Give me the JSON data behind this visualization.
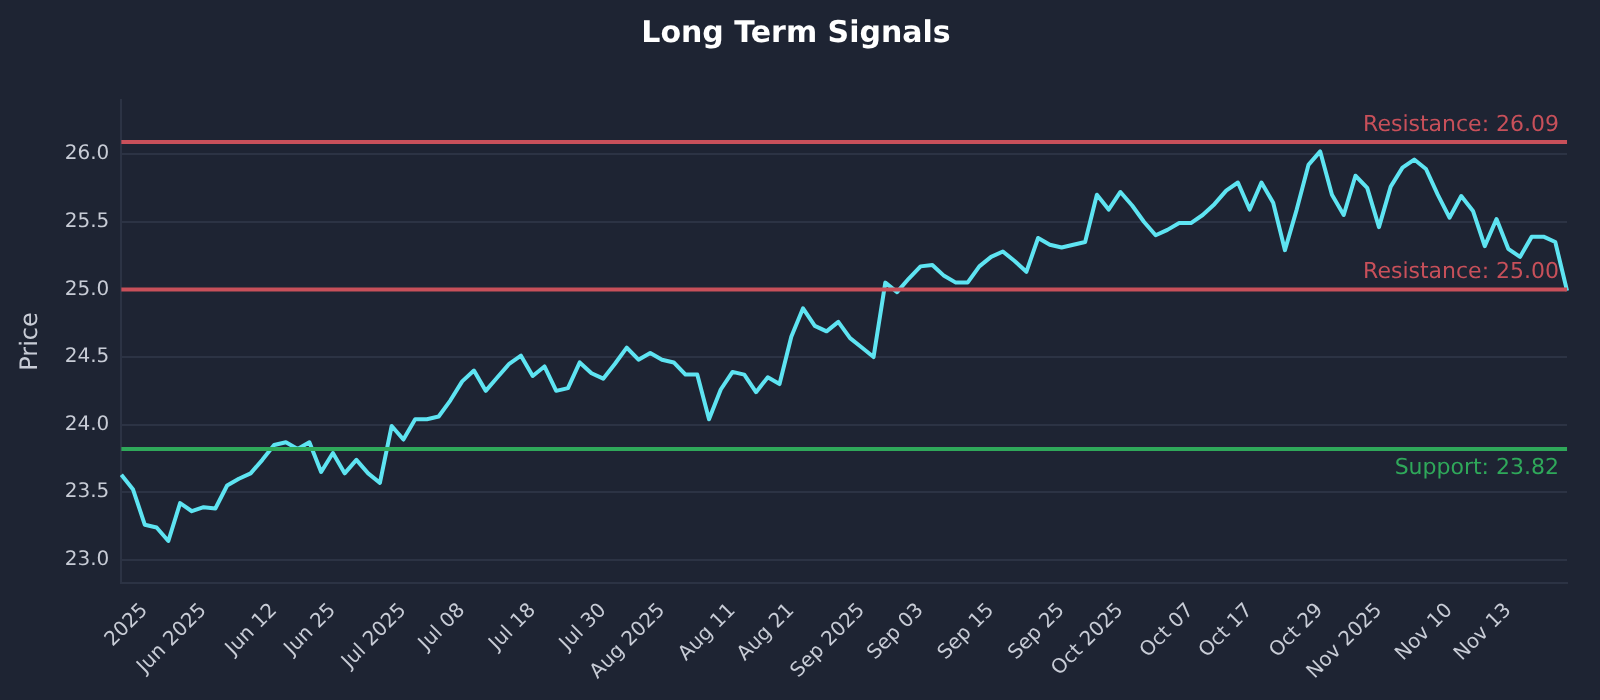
{
  "chart_data": {
    "type": "line",
    "title": "Long Term Signals",
    "ylabel": "Price",
    "categories": [
      null,
      null,
      "2025",
      null,
      null,
      null,
      null,
      "Jun 2025",
      null,
      null,
      null,
      null,
      null,
      "Jun 12",
      null,
      null,
      null,
      null,
      "Jun 25",
      null,
      null,
      null,
      null,
      null,
      "Jul 2025",
      null,
      null,
      null,
      null,
      "Jul 08",
      null,
      null,
      null,
      null,
      null,
      "Jul 18",
      null,
      null,
      null,
      null,
      null,
      "Jul 30",
      null,
      null,
      null,
      null,
      "Aug 2025",
      null,
      null,
      null,
      null,
      null,
      "Aug 11",
      null,
      null,
      null,
      null,
      "Aug 21",
      null,
      null,
      null,
      null,
      null,
      "Sep 2025",
      null,
      null,
      null,
      null,
      "Sep 03",
      null,
      null,
      null,
      null,
      null,
      "Sep 15",
      null,
      null,
      null,
      null,
      null,
      "Sep 25",
      null,
      null,
      null,
      null,
      "Oct 2025",
      null,
      null,
      null,
      null,
      null,
      "Oct 07",
      null,
      null,
      null,
      null,
      "Oct 17",
      null,
      null,
      null,
      null,
      null,
      "Oct 29",
      null,
      null,
      null,
      null,
      "Nov 2025",
      null,
      null,
      null,
      null,
      null,
      "Nov 10",
      null,
      null,
      null,
      null,
      "Nov 13",
      null,
      null,
      null,
      null,
      null
    ],
    "series": [
      {
        "color": "#5ee4f2",
        "values": [
          23.63,
          23.52,
          23.26,
          23.24,
          23.14,
          23.42,
          23.36,
          23.39,
          23.38,
          23.55,
          23.6,
          23.64,
          23.74,
          23.85,
          23.87,
          23.82,
          23.87,
          23.65,
          23.79,
          23.64,
          23.74,
          23.64,
          23.57,
          23.99,
          23.89,
          24.04,
          24.04,
          24.06,
          24.18,
          24.32,
          24.4,
          24.25,
          24.35,
          24.45,
          24.51,
          24.36,
          24.43,
          24.25,
          24.27,
          24.46,
          24.38,
          24.34,
          24.45,
          24.57,
          24.48,
          24.53,
          24.48,
          24.46,
          24.37,
          24.37,
          24.04,
          24.26,
          24.39,
          24.37,
          24.24,
          24.35,
          24.3,
          24.65,
          24.86,
          24.73,
          24.69,
          24.76,
          24.64,
          24.57,
          24.5,
          25.05,
          24.98,
          25.08,
          25.17,
          25.18,
          25.1,
          25.05,
          25.05,
          25.17,
          25.24,
          25.28,
          25.21,
          25.13,
          25.38,
          25.33,
          25.31,
          25.33,
          25.35,
          25.7,
          25.59,
          25.72,
          25.62,
          25.5,
          25.4,
          25.44,
          25.49,
          25.49,
          25.55,
          25.63,
          25.73,
          25.79,
          25.59,
          25.79,
          25.64,
          25.29,
          25.59,
          25.92,
          26.02,
          25.7,
          25.55,
          25.84,
          25.75,
          25.46,
          25.76,
          25.9,
          25.96,
          25.89,
          25.7,
          25.53,
          25.69,
          25.58,
          25.32,
          25.52,
          25.3,
          25.24,
          25.39,
          25.39,
          25.35,
          24.99
        ]
      }
    ],
    "ylim": [
      22.83,
      26.4
    ],
    "yticks": [
      {
        "value": 23,
        "label": "23.0"
      },
      {
        "value": 23.5,
        "label": "23.5"
      },
      {
        "value": 24,
        "label": "24.0"
      },
      {
        "value": 24.5,
        "label": "24.5"
      },
      {
        "value": 25,
        "label": "25.0"
      },
      {
        "value": 25.5,
        "label": "25.5"
      },
      {
        "value": 26,
        "label": "26.0"
      }
    ],
    "ref_lines": [
      {
        "axis": "y",
        "value": 26.09,
        "label": "Resistance: 26.09",
        "color": "#c8505a"
      },
      {
        "axis": "y",
        "value": 25.0,
        "label": "Resistance: 25.00",
        "color": "#c8505a"
      },
      {
        "axis": "y",
        "value": 23.82,
        "label": "Support: 23.82",
        "color": "#2fa85a"
      }
    ],
    "grid": "y",
    "legend": false,
    "marker": "none",
    "line_style": "solid"
  }
}
